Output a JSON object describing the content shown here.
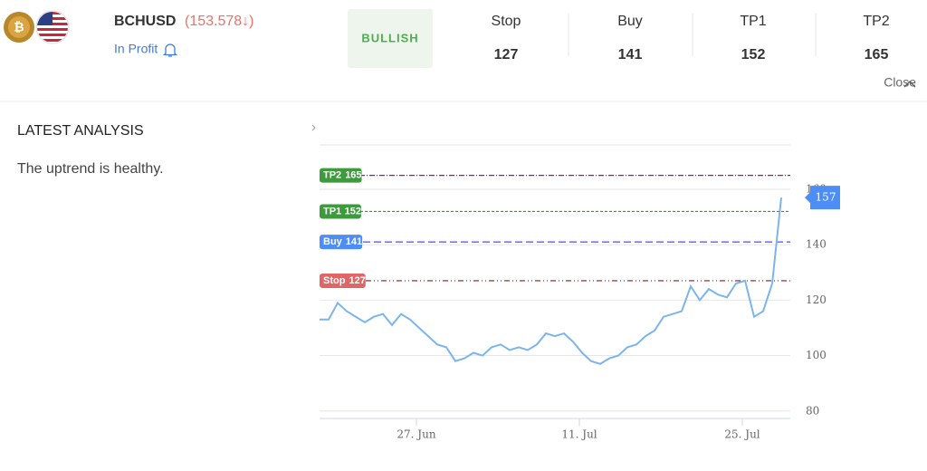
{
  "header": {
    "symbol": "BCHUSD",
    "price": "(153.578↓)",
    "status": "In Profit",
    "signal": "BULLISH",
    "levels": [
      {
        "name": "Stop",
        "value": 127
      },
      {
        "name": "Buy",
        "value": 141
      },
      {
        "name": "TP1",
        "value": 152
      },
      {
        "name": "TP2",
        "value": 165
      }
    ],
    "close": "Close"
  },
  "analysis": {
    "title": "LATEST ANALYSIS",
    "text": "The uptrend is healthy."
  },
  "chart_data": {
    "type": "line",
    "values": [
      113,
      113,
      119,
      116,
      114,
      112,
      114,
      115,
      111,
      115,
      113,
      110,
      107,
      104,
      103,
      98,
      99,
      101,
      100,
      103,
      104,
      102,
      103,
      102,
      104,
      108,
      107,
      108,
      105,
      101,
      98,
      97,
      99,
      100,
      103,
      104,
      107,
      109,
      114,
      115,
      116,
      125,
      120,
      124,
      122,
      121,
      126,
      127,
      114,
      116,
      126,
      157
    ],
    "color": "#7cb5ec",
    "xlim": [
      0,
      51.7
    ],
    "xticks": [
      {
        "value": 10.7,
        "label": "27. Jun"
      },
      {
        "value": 28.7,
        "label": "11. Jul"
      },
      {
        "value": 46.7,
        "label": "25. Jul"
      }
    ],
    "ylim": [
      76,
      176
    ],
    "yticks": [
      80,
      100,
      120,
      140,
      160
    ],
    "grid": true,
    "reference_lines": [
      {
        "name": "TP2",
        "value": 165,
        "color": "#8b1a8b",
        "label_color": "#3d9a3d"
      },
      {
        "name": "TP1",
        "value": 152,
        "color": "#2e9e2e",
        "label_color": "#3d9a3d"
      },
      {
        "name": "Buy",
        "value": 141,
        "color": "#4d4dff",
        "label_color": "#4c8df6"
      },
      {
        "name": "Stop",
        "value": 127,
        "color": "#8b1a1a",
        "label_color": "#e06666"
      }
    ]
  }
}
